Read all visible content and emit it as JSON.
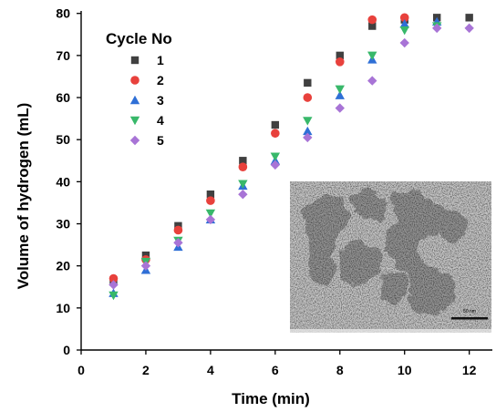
{
  "chart_data": {
    "type": "scatter",
    "title": "",
    "xlabel": "Time (min)",
    "ylabel": "Volume of hydrogen (mL)",
    "xlim": [
      0,
      12.7
    ],
    "ylim": [
      0,
      80.5
    ],
    "xticks": [
      0,
      2,
      4,
      6,
      8,
      10,
      12
    ],
    "yticks": [
      0,
      10,
      20,
      30,
      40,
      50,
      60,
      70,
      80
    ],
    "grid": false,
    "legend": {
      "title": "Cycle No",
      "position": "top-left"
    },
    "series": [
      {
        "name": "1",
        "marker": "square",
        "color": "#404040",
        "x": [
          1,
          2,
          3,
          4,
          5,
          6,
          7,
          8,
          9,
          10,
          11,
          12
        ],
        "y": [
          16.5,
          22.5,
          29.5,
          37,
          45,
          53.5,
          63.5,
          70,
          77,
          78.5,
          79,
          79
        ]
      },
      {
        "name": "2",
        "marker": "circle",
        "color": "#e8413c",
        "x": [
          1,
          2,
          3,
          4,
          5,
          6,
          7,
          8,
          9,
          10
        ],
        "y": [
          17,
          21.5,
          28.5,
          35.5,
          43.5,
          51.5,
          60,
          68.5,
          78.5,
          79
        ]
      },
      {
        "name": "3",
        "marker": "triangle-up",
        "color": "#2f6fd6",
        "x": [
          1,
          2,
          3,
          4,
          5,
          6,
          7,
          8,
          9,
          10,
          11
        ],
        "y": [
          13.5,
          19,
          24.5,
          31,
          39,
          45,
          52,
          60.5,
          69,
          77.5,
          78
        ]
      },
      {
        "name": "4",
        "marker": "triangle-down",
        "color": "#38b86a",
        "x": [
          1,
          2,
          3,
          4,
          5,
          6,
          7,
          8,
          9,
          10,
          11
        ],
        "y": [
          13,
          21,
          26,
          32.5,
          39.5,
          46,
          54.5,
          62,
          70,
          76,
          77
        ]
      },
      {
        "name": "5",
        "marker": "diamond",
        "color": "#a874d6",
        "x": [
          1,
          2,
          3,
          4,
          5,
          6,
          7,
          8,
          9,
          10,
          11,
          12
        ],
        "y": [
          15.5,
          20,
          25.5,
          31,
          37,
          44,
          50.5,
          57.5,
          64,
          73,
          76.5,
          76.5
        ]
      }
    ],
    "inset": {
      "kind": "micrograph",
      "scale_bar_label": "50 nm"
    }
  }
}
